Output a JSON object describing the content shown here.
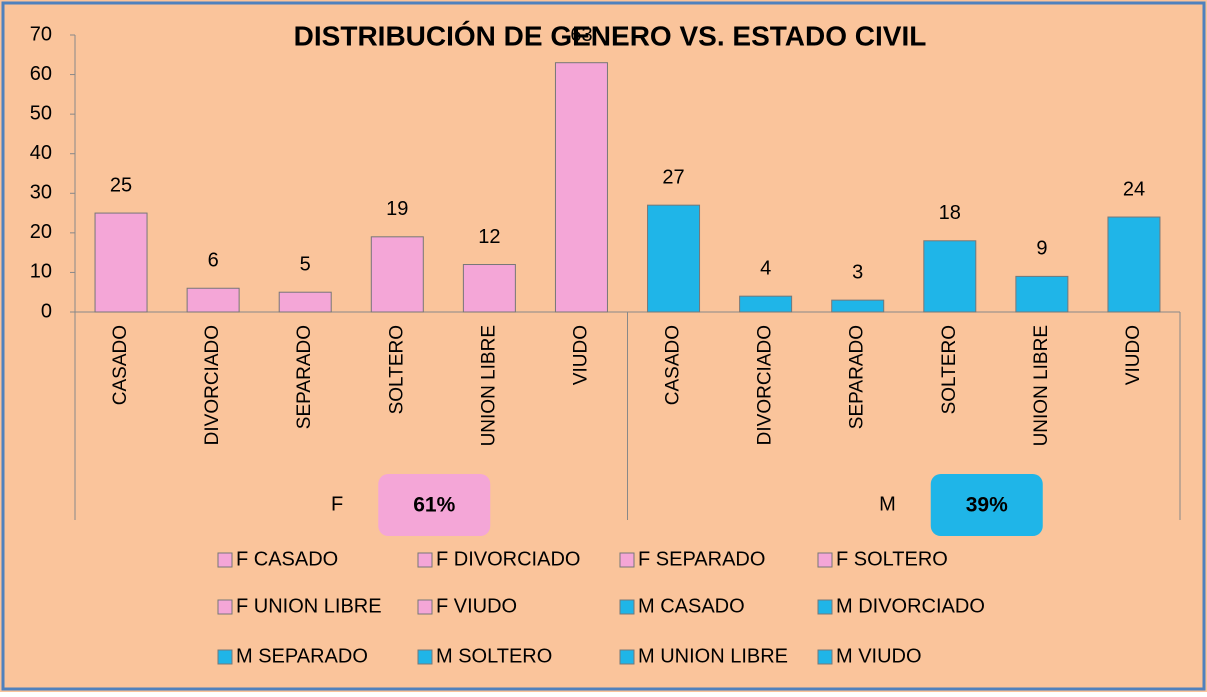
{
  "chart_data": {
    "type": "bar",
    "title": "DISTRIBUCIÓN DE GENERO VS. ESTADO CIVIL",
    "groups": [
      {
        "name": "F",
        "share": 61,
        "share_label": "61%",
        "color": "#f4a6d7"
      },
      {
        "name": "M",
        "share": 39,
        "share_label": "39%",
        "color": "#1fb5e8"
      }
    ],
    "series": [
      {
        "name": "F",
        "color": "#f4a6d7",
        "categories": [
          "CASADO",
          "DIVORCIADO",
          "SEPARADO",
          "SOLTERO",
          "UNION LIBRE",
          "VIUDO"
        ],
        "values": [
          25,
          6,
          5,
          19,
          12,
          63
        ]
      },
      {
        "name": "M",
        "color": "#1fb5e8",
        "categories": [
          "CASADO",
          "DIVORCIADO",
          "SEPARADO",
          "SOLTERO",
          "UNION LIBRE",
          "VIUDO"
        ],
        "values": [
          27,
          4,
          3,
          18,
          9,
          24
        ]
      }
    ],
    "legend": [
      {
        "name": "F CASADO",
        "color": "#f4a6d7"
      },
      {
        "name": "F DIVORCIADO",
        "color": "#f4a6d7"
      },
      {
        "name": "F SEPARADO",
        "color": "#f4a6d7"
      },
      {
        "name": "F SOLTERO",
        "color": "#f4a6d7"
      },
      {
        "name": "F UNION LIBRE",
        "color": "#f4a6d7"
      },
      {
        "name": "F VIUDO",
        "color": "#f4a6d7"
      },
      {
        "name": "M CASADO",
        "color": "#1fb5e8"
      },
      {
        "name": "M DIVORCIADO",
        "color": "#1fb5e8"
      },
      {
        "name": "M SEPARADO",
        "color": "#1fb5e8"
      },
      {
        "name": "M SOLTERO",
        "color": "#1fb5e8"
      },
      {
        "name": "M UNION LIBRE",
        "color": "#1fb5e8"
      },
      {
        "name": "M VIUDO",
        "color": "#1fb5e8"
      }
    ],
    "ylim": [
      0,
      70
    ],
    "yticks": [
      0,
      10,
      20,
      30,
      40,
      50,
      60,
      70
    ]
  }
}
